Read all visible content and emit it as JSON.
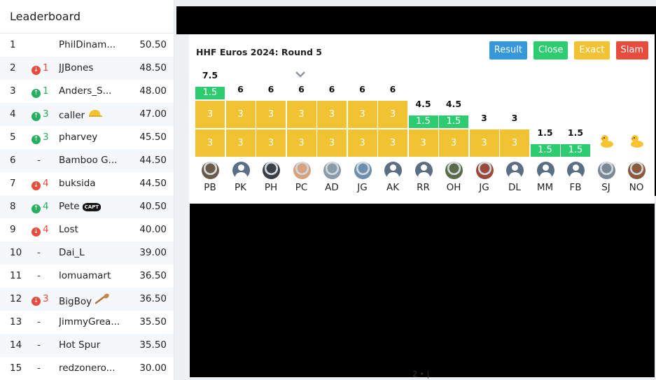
{
  "leaderboard": {
    "title": "Leaderboard",
    "rows": [
      {
        "rank": "1",
        "move": "",
        "dir": "none",
        "name": "PhilDinam...",
        "score": "50.50",
        "extra": ""
      },
      {
        "rank": "2",
        "move": "1",
        "dir": "down",
        "name": "JJBones",
        "score": "48.50",
        "extra": ""
      },
      {
        "rank": "3",
        "move": "1",
        "dir": "up",
        "name": "Anders_S...",
        "score": "48.00",
        "extra": ""
      },
      {
        "rank": "4",
        "move": "3",
        "dir": "up",
        "name": "caller",
        "score": "47.00",
        "extra": "cap"
      },
      {
        "rank": "5",
        "move": "3",
        "dir": "up",
        "name": "pharvey",
        "score": "45.50",
        "extra": ""
      },
      {
        "rank": "6",
        "move": "-",
        "dir": "none",
        "name": "Bamboo G...",
        "score": "44.50",
        "extra": ""
      },
      {
        "rank": "7",
        "move": "4",
        "dir": "down",
        "name": "buksida",
        "score": "44.50",
        "extra": ""
      },
      {
        "rank": "8",
        "move": "4",
        "dir": "up",
        "name": "Pete",
        "score": "40.50",
        "extra": "capt"
      },
      {
        "rank": "9",
        "move": "4",
        "dir": "down",
        "name": "Lost",
        "score": "40.00",
        "extra": ""
      },
      {
        "rank": "10",
        "move": "-",
        "dir": "none",
        "name": "Dai_L",
        "score": "39.00",
        "extra": ""
      },
      {
        "rank": "11",
        "move": "-",
        "dir": "none",
        "name": "lomuamart",
        "score": "36.50",
        "extra": ""
      },
      {
        "rank": "12",
        "move": "3",
        "dir": "down",
        "name": "BigBoy",
        "score": "36.50",
        "extra": "spoon"
      },
      {
        "rank": "13",
        "move": "-",
        "dir": "none",
        "name": "JimmyGrea...",
        "score": "35.50",
        "extra": ""
      },
      {
        "rank": "14",
        "move": "-",
        "dir": "none",
        "name": "Hot Spur",
        "score": "35.50",
        "extra": ""
      },
      {
        "rank": "15",
        "move": "-",
        "dir": "none",
        "name": "redzonero...",
        "score": "30.00",
        "extra": ""
      }
    ],
    "capt_label": "CAPT"
  },
  "round": {
    "title": "HHF Euros 2024: Round 5",
    "buttons": {
      "result": "Result",
      "close": "Close",
      "exact": "Exact",
      "slam": "Slam"
    },
    "players": [
      {
        "initials": "PB",
        "total": "7.5",
        "exact": 2,
        "close": 1,
        "close_label": "1.5",
        "exact_label": "3",
        "avatar": "photo",
        "avatar_color": "#6b5a4a"
      },
      {
        "initials": "PK",
        "total": "6",
        "exact": 2,
        "close": 0,
        "close_label": "",
        "exact_label": "3",
        "avatar": "default",
        "avatar_color": "#5b6f84"
      },
      {
        "initials": "PH",
        "total": "6",
        "exact": 2,
        "close": 0,
        "close_label": "",
        "exact_label": "3",
        "avatar": "photo",
        "avatar_color": "#3b4046"
      },
      {
        "initials": "PC",
        "total": "6",
        "exact": 2,
        "close": 0,
        "close_label": "",
        "exact_label": "3",
        "avatar": "photo",
        "avatar_color": "#d8a27e"
      },
      {
        "initials": "AD",
        "total": "6",
        "exact": 2,
        "close": 0,
        "close_label": "",
        "exact_label": "3",
        "avatar": "photo",
        "avatar_color": "#8a9aa8"
      },
      {
        "initials": "JG",
        "total": "6",
        "exact": 2,
        "close": 0,
        "close_label": "",
        "exact_label": "3",
        "avatar": "photo",
        "avatar_color": "#6c8fae"
      },
      {
        "initials": "AK",
        "total": "6",
        "exact": 2,
        "close": 0,
        "close_label": "",
        "exact_label": "3",
        "avatar": "default",
        "avatar_color": "#5b6f84"
      },
      {
        "initials": "RR",
        "total": "4.5",
        "exact": 1,
        "close": 1,
        "close_label": "1.5",
        "exact_label": "3",
        "avatar": "default",
        "avatar_color": "#5b6f84"
      },
      {
        "initials": "OH",
        "total": "4.5",
        "exact": 1,
        "close": 1,
        "close_label": "1.5",
        "exact_label": "3",
        "avatar": "photo",
        "avatar_color": "#5a6b4a"
      },
      {
        "initials": "JG",
        "total": "3",
        "exact": 1,
        "close": 0,
        "close_label": "",
        "exact_label": "3",
        "avatar": "photo",
        "avatar_color": "#9a4a3a"
      },
      {
        "initials": "DL",
        "total": "3",
        "exact": 1,
        "close": 0,
        "close_label": "",
        "exact_label": "3",
        "avatar": "default",
        "avatar_color": "#5b6f84"
      },
      {
        "initials": "MM",
        "total": "1.5",
        "exact": 0,
        "close": 1,
        "close_label": "1.5",
        "exact_label": "",
        "avatar": "default",
        "avatar_color": "#5b6f84"
      },
      {
        "initials": "FB",
        "total": "1.5",
        "exact": 0,
        "close": 1,
        "close_label": "1.5",
        "exact_label": "",
        "avatar": "default",
        "avatar_color": "#5b6f84"
      },
      {
        "initials": "SJ",
        "total": "",
        "exact": 0,
        "close": 0,
        "close_label": "",
        "exact_label": "",
        "avatar": "photo",
        "avatar_color": "#7a8896",
        "duck": true
      },
      {
        "initials": "NO",
        "total": "",
        "exact": 0,
        "close": 0,
        "close_label": "",
        "exact_label": "",
        "avatar": "photo",
        "avatar_color": "#8a5a3a",
        "duck": true
      }
    ]
  },
  "stray_text": "2 • |"
}
